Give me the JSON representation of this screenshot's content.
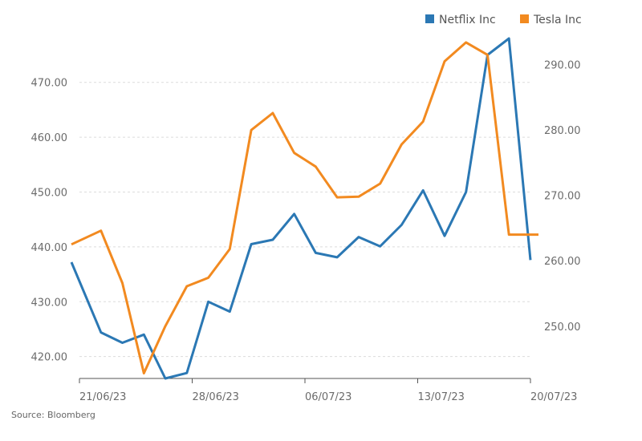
{
  "chart_data": {
    "type": "line",
    "source": "Source: Bloomberg",
    "x_ticks": [
      "21/06/23",
      "28/06/23",
      "06/07/23",
      "13/07/23",
      "20/07/23"
    ],
    "left_axis": {
      "ticks": [
        "420.00",
        "430.00",
        "440.00",
        "450.00",
        "460.00",
        "470.00"
      ],
      "ylim": [
        416,
        478
      ]
    },
    "right_axis": {
      "ticks": [
        "250.00",
        "260.00",
        "270.00",
        "280.00",
        "290.00"
      ],
      "ylim": [
        242,
        294
      ]
    },
    "grid": true,
    "legend_position": "top-right",
    "series": [
      {
        "name": "Netflix Inc",
        "color": "#2b78b4",
        "axis": "left",
        "values": [
          437.2,
          424.4,
          422.5,
          424.0,
          416.0,
          417.0,
          430.0,
          428.2,
          440.5,
          441.3,
          446.0,
          438.9,
          438.1,
          441.8,
          440.1,
          444.0,
          450.3,
          442.0,
          450.0,
          475.0,
          478.0,
          437.6
        ]
      },
      {
        "name": "Tesla Inc",
        "color": "#f28a20",
        "axis": "right",
        "values": [
          262.5,
          264.6,
          256.6,
          242.8,
          250.0,
          256.1,
          257.4,
          261.8,
          280.0,
          282.6,
          276.5,
          274.4,
          269.7,
          269.8,
          271.8,
          277.8,
          281.3,
          290.5,
          293.4,
          291.5,
          264.0,
          264.0
        ]
      }
    ]
  }
}
